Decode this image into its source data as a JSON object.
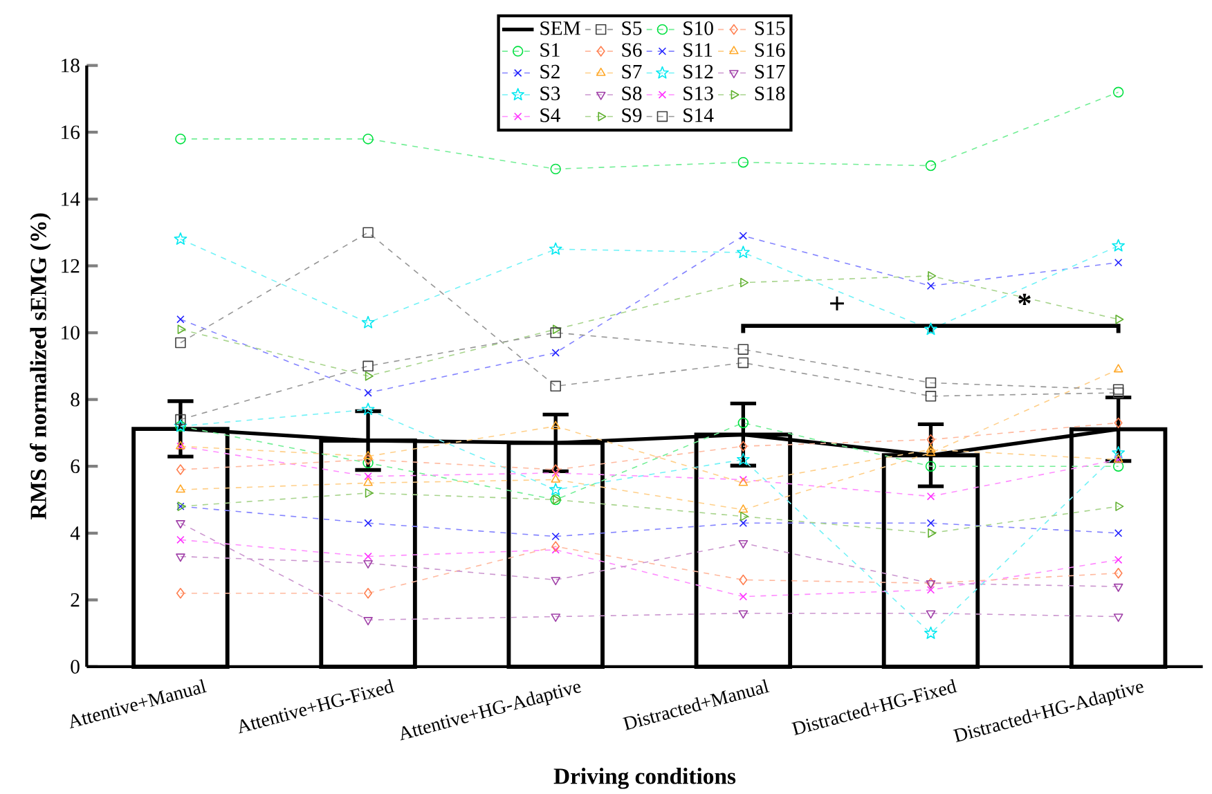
{
  "chart_data": {
    "type": "line",
    "xlabel": "Driving conditions",
    "ylabel": "RMS of normalized sEMG (%)",
    "categories": [
      "Attentive+Manual",
      "Attentive+HG-Fixed",
      "Attentive+HG-Adaptive",
      "Distracted+Manual",
      "Distracted+HG-Fixed",
      "Distracted+HG-Adaptive"
    ],
    "ylim": [
      0,
      18
    ],
    "yticks": [
      0,
      2,
      4,
      6,
      8,
      10,
      12,
      14,
      16,
      18
    ],
    "grid": false,
    "legend": "top",
    "line_style": "dashed",
    "annotations": [
      "+",
      "*"
    ],
    "series": [
      {
        "type": "bar",
        "color": "#000000",
        "values": [
          7.12,
          6.77,
          6.7,
          6.95,
          6.33,
          7.11
        ]
      },
      {
        "type": "line",
        "name": "SEM",
        "color": "#000000",
        "marker": "none",
        "line_style": "solid",
        "values": [
          7.12,
          6.77,
          6.7,
          6.95,
          6.33,
          7.11
        ],
        "errors": [
          0.83,
          0.88,
          0.85,
          0.93,
          0.93,
          0.95
        ]
      },
      {
        "name": "S1",
        "color": "#00e040",
        "marker": "circle",
        "values": [
          15.8,
          15.8,
          14.9,
          15.1,
          15.0,
          17.2
        ]
      },
      {
        "name": "S2",
        "color": "#2020ff",
        "marker": "cross",
        "values": [
          10.4,
          8.2,
          9.4,
          12.9,
          11.4,
          12.1
        ]
      },
      {
        "name": "S3",
        "color": "#00e8f0",
        "marker": "star",
        "values": [
          12.8,
          10.3,
          12.5,
          12.4,
          10.1,
          12.6
        ]
      },
      {
        "name": "S4",
        "color": "#ff30ff",
        "marker": "cross",
        "values": [
          3.8,
          3.3,
          3.5,
          2.1,
          2.3,
          3.2
        ]
      },
      {
        "name": "S5",
        "color": "#404040",
        "marker": "square",
        "values": [
          9.7,
          13.0,
          8.4,
          9.1,
          8.1,
          8.2
        ]
      },
      {
        "name": "S6",
        "color": "#ff7f50",
        "marker": "diamond",
        "values": [
          2.2,
          2.2,
          3.6,
          2.6,
          2.5,
          2.8
        ]
      },
      {
        "name": "S7",
        "color": "#ffa828",
        "marker": "triangle",
        "values": [
          5.3,
          5.5,
          5.6,
          4.7,
          6.4,
          8.9
        ]
      },
      {
        "name": "S8",
        "color": "#a040a8",
        "marker": "triangle",
        "values": [
          3.3,
          3.1,
          2.6,
          3.7,
          2.5,
          2.4
        ]
      },
      {
        "name": "S9",
        "color": "#60b030",
        "marker": "triangle",
        "values": [
          10.1,
          8.7,
          10.1,
          11.5,
          11.7,
          10.4
        ]
      },
      {
        "name": "S10",
        "color": "#00e040",
        "marker": "circle",
        "values": [
          7.2,
          6.1,
          5.0,
          7.3,
          6.0,
          6.0
        ]
      },
      {
        "name": "S11",
        "color": "#2020ff",
        "marker": "cross",
        "values": [
          4.8,
          4.3,
          3.9,
          4.3,
          4.3,
          4.0
        ]
      },
      {
        "name": "S12",
        "color": "#00e8f0",
        "marker": "star",
        "values": [
          7.2,
          7.7,
          5.3,
          6.2,
          1.0,
          6.4
        ]
      },
      {
        "name": "S13",
        "color": "#ff30ff",
        "marker": "cross",
        "values": [
          6.6,
          5.7,
          5.8,
          5.6,
          5.1,
          6.2
        ]
      },
      {
        "name": "S14",
        "color": "#404040",
        "marker": "square",
        "values": [
          7.4,
          9.0,
          10.0,
          9.5,
          8.5,
          8.3
        ]
      },
      {
        "name": "S15",
        "color": "#ff7f50",
        "marker": "diamond",
        "values": [
          5.9,
          6.2,
          5.9,
          6.6,
          6.8,
          7.3
        ]
      },
      {
        "name": "S16",
        "color": "#ffa828",
        "marker": "triangle",
        "values": [
          6.6,
          6.3,
          7.2,
          5.5,
          6.5,
          6.2
        ]
      },
      {
        "name": "S17",
        "color": "#a040a8",
        "marker": "triangle",
        "values": [
          4.3,
          1.4,
          1.5,
          1.6,
          1.6,
          1.5
        ]
      },
      {
        "name": "S18",
        "color": "#60b030",
        "marker": "triangle",
        "values": [
          4.8,
          5.2,
          5.0,
          4.5,
          4.0,
          4.8
        ]
      }
    ]
  }
}
